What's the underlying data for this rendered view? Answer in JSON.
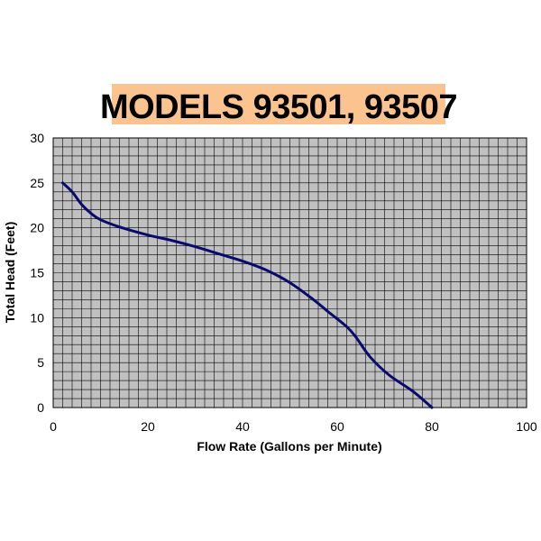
{
  "chart_data": {
    "type": "line",
    "title": "MODELS 93501, 93507",
    "xlabel": "Flow Rate (Gallons per Minute)",
    "ylabel": "Total Head (Feet)",
    "xlim": [
      0,
      100
    ],
    "ylim": [
      0,
      30
    ],
    "x_ticks": [
      "0",
      "20",
      "40",
      "60",
      "80",
      "100"
    ],
    "y_ticks": [
      "0",
      "5",
      "10",
      "15",
      "20",
      "25",
      "30"
    ],
    "x_grid_step": 2,
    "y_grid_step": 1,
    "grid": true,
    "legend": "none",
    "series": [
      {
        "x": [
          2,
          4,
          6,
          8,
          10,
          14,
          20,
          25,
          30,
          35,
          40,
          45,
          50,
          55,
          58,
          62,
          64,
          67,
          71,
          76,
          80
        ],
        "y": [
          25,
          24,
          22.6,
          21.6,
          20.9,
          20.1,
          19.2,
          18.6,
          17.9,
          17.1,
          16.3,
          15.3,
          13.9,
          12.0,
          10.7,
          9.0,
          7.8,
          5.6,
          3.6,
          1.8,
          0
        ],
        "color": "#0a0a6e"
      }
    ]
  }
}
